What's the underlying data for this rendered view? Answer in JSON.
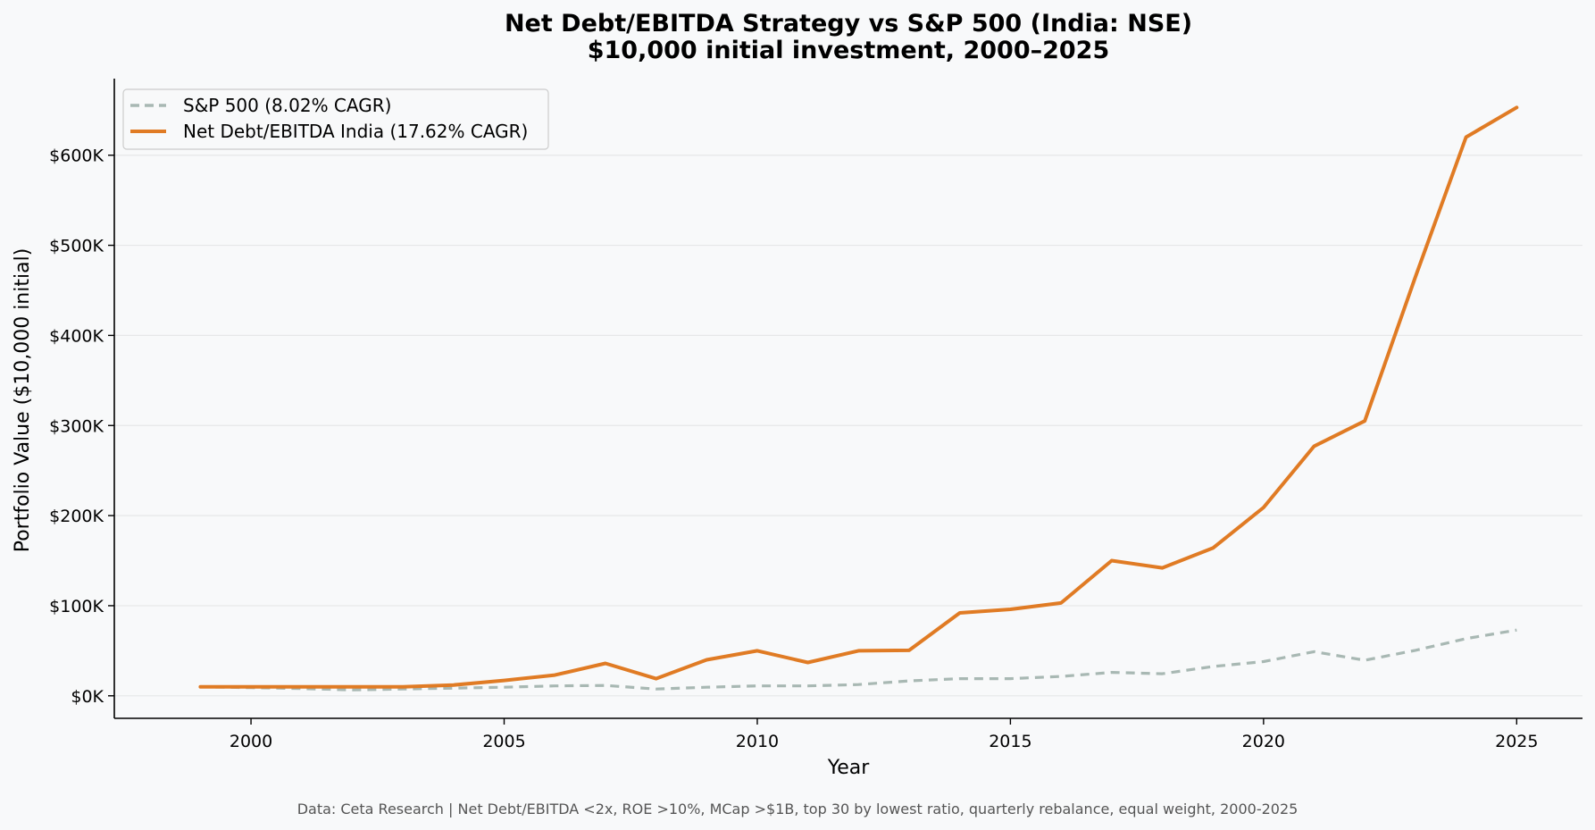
{
  "chart_data": {
    "type": "line",
    "title": "Net Debt/EBITDA Strategy vs S&P 500 (India: NSE)",
    "subtitle": "$10,000 initial investment, 2000–2025",
    "xlabel": "Year",
    "ylabel": "Portfolio Value ($10,000 initial)",
    "xlim": [
      1997.3,
      2026.3
    ],
    "ylim": [
      -25000,
      685000
    ],
    "x_ticks": [
      2000,
      2005,
      2010,
      2015,
      2020,
      2025
    ],
    "x_tick_labels": [
      "2000",
      "2005",
      "2010",
      "2015",
      "2020",
      "2025"
    ],
    "y_ticks": [
      0,
      100000,
      200000,
      300000,
      400000,
      500000,
      600000
    ],
    "y_tick_labels": [
      "$0K",
      "$100K",
      "$200K",
      "$300K",
      "$400K",
      "$500K",
      "$600K"
    ],
    "grid": "horizontal",
    "legend_position": "top-left",
    "footnote": "Data: Ceta Research | Net Debt/EBITDA <2x, ROE >10%, MCap >$1B, top 30 by lowest ratio, quarterly rebalance, equal weight, 2000-2025",
    "x": [
      1999,
      2000,
      2001,
      2002,
      2003,
      2004,
      2005,
      2006,
      2007,
      2008,
      2009,
      2010,
      2011,
      2012,
      2013,
      2014,
      2015,
      2016,
      2017,
      2018,
      2019,
      2020,
      2021,
      2022,
      2023,
      2024,
      2025
    ],
    "series": [
      {
        "name": "S&P 500 (8.02% CAGR)",
        "color": "#a8b8b3",
        "style": "dashed",
        "values": [
          10000,
          9000,
          8000,
          6500,
          7500,
          8500,
          9500,
          11000,
          11500,
          7500,
          9500,
          11000,
          11000,
          12500,
          16500,
          19000,
          19000,
          21500,
          26000,
          24500,
          32500,
          38000,
          49000,
          39500,
          50500,
          63500,
          73000
        ]
      },
      {
        "name": "Net Debt/EBITDA India (17.62% CAGR)",
        "color": "#e07b24",
        "style": "solid",
        "values": [
          10000,
          10000,
          10000,
          10000,
          10000,
          12000,
          17000,
          23000,
          36000,
          19000,
          40000,
          50000,
          37000,
          50000,
          50500,
          92000,
          96000,
          103000,
          150000,
          142000,
          164000,
          209000,
          277000,
          305000,
          465000,
          620000,
          653000
        ]
      }
    ]
  }
}
